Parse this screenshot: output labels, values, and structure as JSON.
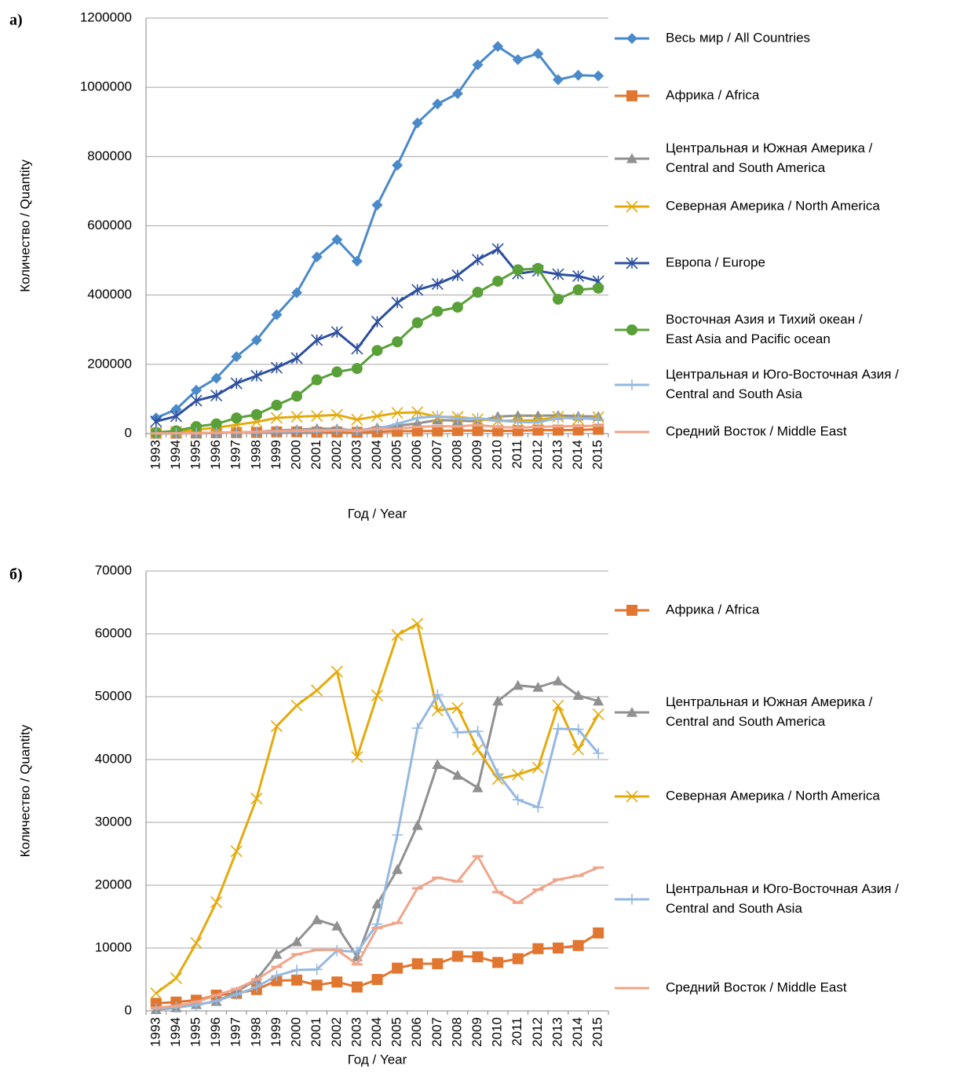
{
  "chart_data": [
    {
      "type": "line",
      "label": "а)",
      "xlabel": "Год / Year",
      "ylabel": "Количество / Quantity",
      "categories": [
        "1993",
        "1994",
        "1995",
        "1996",
        "1997",
        "1998",
        "1999",
        "2000",
        "2001",
        "2002",
        "2003",
        "2004",
        "2005",
        "2006",
        "2007",
        "2008",
        "2009",
        "2010",
        "2011",
        "2012",
        "2013",
        "2014",
        "2015"
      ],
      "ylim": [
        0,
        1200000
      ],
      "yticks": [
        0,
        200000,
        400000,
        600000,
        800000,
        1000000,
        1200000
      ],
      "grid": true,
      "legend": "right",
      "series": [
        {
          "name": [
            "Весь мир / All Countries"
          ],
          "color": "#4a8ac9",
          "marker": "diamond",
          "values": [
            45000,
            70000,
            125000,
            160000,
            222000,
            270000,
            343000,
            407000,
            510000,
            560000,
            498000,
            660000,
            775000,
            897000,
            952000,
            982000,
            1065000,
            1118000,
            1080000,
            1097000,
            1022000,
            1035000,
            1033000
          ]
        },
        {
          "name": [
            "Африка / Africa"
          ],
          "color": "#e0762f",
          "marker": "square",
          "values": [
            1200,
            1400,
            1700,
            2500,
            2800,
            3400,
            4800,
            4900,
            4100,
            4600,
            3800,
            5000,
            6800,
            7500,
            7500,
            8700,
            8600,
            7700,
            8300,
            9900,
            10000,
            10400,
            12400
          ]
        },
        {
          "name": [
            "Центральная и Южная Америка /",
            "Central and South America"
          ],
          "color": "#909090",
          "marker": "triangle",
          "values": [
            200,
            500,
            1000,
            1500,
            3000,
            5000,
            9000,
            11000,
            14500,
            13500,
            8600,
            17000,
            22500,
            29500,
            39200,
            37500,
            35500,
            49300,
            51800,
            51500,
            52500,
            50200,
            49300
          ]
        },
        {
          "name": [
            "Северная Америка / North America"
          ],
          "color": "#e4aa0c",
          "marker": "x",
          "values": [
            2800,
            5200,
            10800,
            17300,
            25400,
            33800,
            45300,
            48600,
            51000,
            54000,
            40400,
            50200,
            59800,
            61600,
            47800,
            48200,
            41600,
            36900,
            37600,
            38700,
            48600,
            41600,
            47200
          ]
        },
        {
          "name": [
            "Европа / Europe"
          ],
          "color": "#2d4f9e",
          "marker": "star",
          "values": [
            35000,
            50000,
            95000,
            110000,
            145000,
            167000,
            190000,
            218000,
            270000,
            293000,
            245000,
            323000,
            378000,
            415000,
            432000,
            457000,
            502000,
            533000,
            462000,
            470000,
            460000,
            455000,
            440000
          ]
        },
        {
          "name": [
            "Восточная Азия и Тихий океан /",
            "East Asia and Pacific ocean"
          ],
          "color": "#5aa039",
          "marker": "circle",
          "values": [
            3000,
            8000,
            20000,
            28000,
            45000,
            55000,
            82000,
            108000,
            155000,
            178000,
            188000,
            240000,
            265000,
            320000,
            353000,
            365000,
            408000,
            440000,
            473000,
            477000,
            388000,
            415000,
            420000
          ]
        },
        {
          "name": [
            "Центральная и Юго-Восточная Азия /",
            "Central and South Asia"
          ],
          "color": "#95b8e0",
          "marker": "plus",
          "values": [
            300,
            600,
            900,
            1600,
            2600,
            3800,
            5600,
            6500,
            6600,
            9600,
            9400,
            13800,
            28000,
            45000,
            50300,
            44300,
            44500,
            37700,
            33600,
            32400,
            44900,
            44800,
            41000
          ]
        },
        {
          "name": [
            "Средний Восток / Middle East"
          ],
          "color": "#f0a48a",
          "marker": "dash",
          "values": [
            500,
            800,
            1400,
            2500,
            3500,
            5000,
            7000,
            9000,
            9700,
            9700,
            7400,
            13200,
            14000,
            19500,
            21200,
            20600,
            24600,
            18900,
            17200,
            19300,
            20900,
            21500,
            22800
          ]
        }
      ]
    },
    {
      "type": "line",
      "label": "б)",
      "xlabel": "Год / Year",
      "ylabel": "Количество / Quantity",
      "categories": [
        "1993",
        "1994",
        "1995",
        "1996",
        "1997",
        "1998",
        "1999",
        "2000",
        "2001",
        "2002",
        "2003",
        "2004",
        "2005",
        "2006",
        "2007",
        "2008",
        "2009",
        "2010",
        "2011",
        "2012",
        "2013",
        "2014",
        "2015"
      ],
      "ylim": [
        0,
        70000
      ],
      "yticks": [
        0,
        10000,
        20000,
        30000,
        40000,
        50000,
        60000,
        70000
      ],
      "grid": true,
      "legend": "right",
      "series": [
        {
          "name": [
            "Африка / Africa"
          ],
          "color": "#e0762f",
          "marker": "square",
          "values": [
            1200,
            1400,
            1700,
            2500,
            2800,
            3400,
            4800,
            4900,
            4100,
            4600,
            3800,
            5000,
            6800,
            7500,
            7500,
            8700,
            8600,
            7700,
            8300,
            9900,
            10000,
            10400,
            12400
          ]
        },
        {
          "name": [
            "Центральная и Южная Америка /",
            "Central and South America"
          ],
          "color": "#909090",
          "marker": "triangle",
          "values": [
            200,
            500,
            1000,
            1500,
            3000,
            5000,
            9000,
            11000,
            14500,
            13500,
            8600,
            17000,
            22500,
            29500,
            39200,
            37500,
            35500,
            49300,
            51800,
            51500,
            52500,
            50200,
            49300
          ]
        },
        {
          "name": [
            "Северная Америка / North America"
          ],
          "color": "#e4aa0c",
          "marker": "x",
          "values": [
            2800,
            5200,
            10800,
            17300,
            25400,
            33800,
            45300,
            48600,
            51000,
            54000,
            40400,
            50200,
            59800,
            61600,
            47800,
            48200,
            41600,
            36900,
            37600,
            38700,
            48600,
            41600,
            47200
          ]
        },
        {
          "name": [
            "Центральная и Юго-Восточная Азия /",
            "Central and South Asia"
          ],
          "color": "#95b8e0",
          "marker": "plus",
          "values": [
            300,
            600,
            900,
            1600,
            2600,
            3800,
            5600,
            6500,
            6600,
            9600,
            9400,
            13800,
            28000,
            45000,
            50300,
            44300,
            44500,
            37700,
            33600,
            32400,
            44900,
            44800,
            41000
          ]
        },
        {
          "name": [
            "Средний Восток / Middle East"
          ],
          "color": "#f0a48a",
          "marker": "dash",
          "values": [
            500,
            800,
            1400,
            2500,
            3500,
            5000,
            7000,
            9000,
            9700,
            9700,
            7400,
            13200,
            14000,
            19500,
            21200,
            20600,
            24600,
            18900,
            17200,
            19300,
            20900,
            21500,
            22800
          ]
        }
      ]
    }
  ]
}
